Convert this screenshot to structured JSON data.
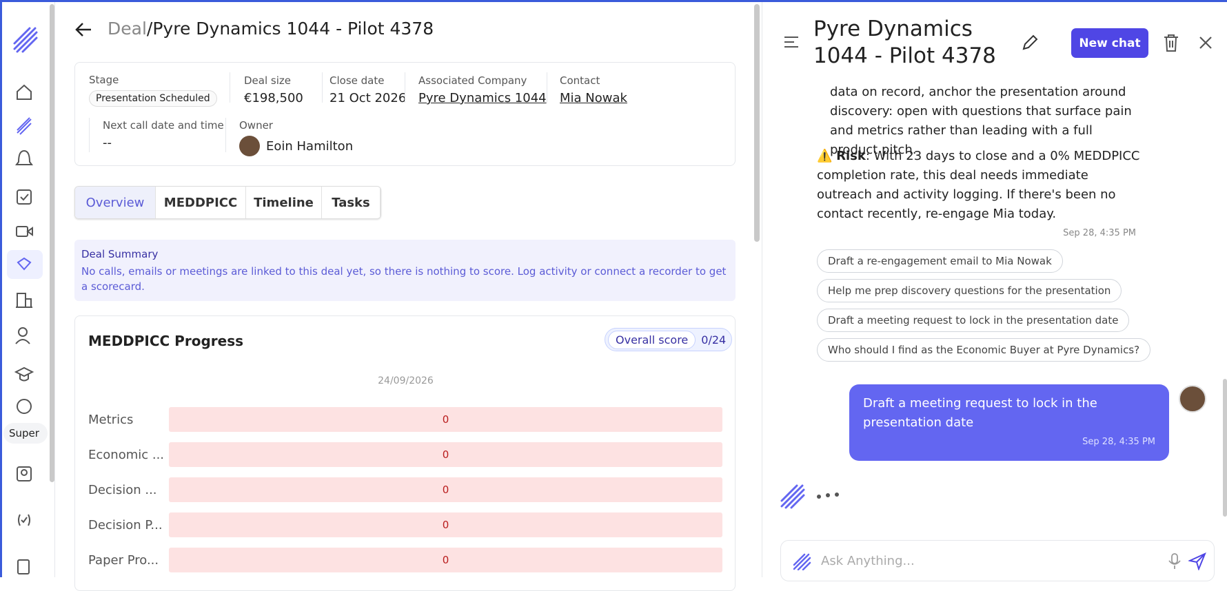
{
  "header": {
    "section": "Deal",
    "separator": "/",
    "title": "Pyre Dynamics 1044 - Pilot 4378"
  },
  "deal": {
    "stage": {
      "label": "Stage",
      "value": "Presentation Scheduled"
    },
    "deal_size": {
      "label": "Deal size",
      "value": "€198,500"
    },
    "close_date": {
      "label": "Close date",
      "value": "21 Oct 2026"
    },
    "company": {
      "label": "Associated Company",
      "value": "Pyre Dynamics 1044"
    },
    "contact": {
      "label": "Contact",
      "value": "Mia Nowak"
    },
    "next_call": {
      "label": "Next call date and time",
      "value": "--"
    },
    "owner": {
      "label": "Owner",
      "value": "Eoin Hamilton"
    }
  },
  "tabs": [
    "Overview",
    "MEDDPICC",
    "Timeline",
    "Tasks"
  ],
  "summary": {
    "title": "Deal Summary",
    "text": "No calls, emails or meetings are linked to this deal yet, so there is nothing to score. Log activity or connect a recorder to get a scorecard."
  },
  "meddpicc": {
    "title": "MEDDPICC Progress",
    "score_label": "Overall score",
    "score": "0/24",
    "date": "24/09/2026",
    "rows": [
      {
        "label": "Metrics",
        "value": "0"
      },
      {
        "label": "Economic ...",
        "value": "0"
      },
      {
        "label": "Decision ...",
        "value": "0"
      },
      {
        "label": "Decision P...",
        "value": "0"
      },
      {
        "label": "Paper Pro...",
        "value": "0"
      }
    ]
  },
  "sidebar": {
    "super": "Super"
  },
  "chat": {
    "title": "Pyre Dynamics 1044 - Pilot 4378",
    "new_chat": "New chat",
    "assistant_text": "data on record, anchor the presentation around discovery: open with questions that surface pain and metrics rather than leading with a full product pitch.",
    "risk_icon": "⚠️",
    "risk_label": "Risk",
    "risk_text": ": With 23 days to close and a 0% MEDDPICC completion rate, this deal needs immediate outreach and activity logging. If there's been no contact recently, re-engage Mia today.",
    "assistant_time": "Sep 28, 4:35 PM",
    "suggestions": [
      "Draft a re-engagement email to Mia Nowak",
      "Help me prep discovery questions for the presentation",
      "Draft a meeting request to lock in the presentation date",
      "Who should I find as the Economic Buyer at Pyre Dynamics?"
    ],
    "user_message": "Draft a meeting request to lock in the presentation date",
    "user_time": "Sep 28, 4:35 PM",
    "placeholder": "Ask Anything..."
  }
}
